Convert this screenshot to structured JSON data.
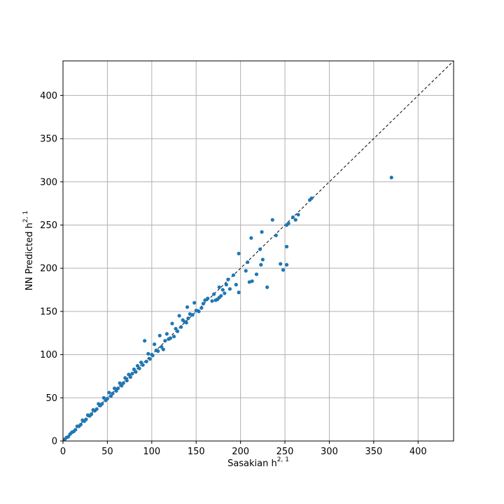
{
  "chart_data": {
    "type": "scatter",
    "title": "",
    "xlabel": "Sasakian h",
    "xlabel_sup": "2, 1",
    "ylabel": "NN Predicted h",
    "ylabel_sup": "2, 1",
    "xlim": [
      0,
      440
    ],
    "ylim": [
      0,
      440
    ],
    "xticks": [
      0,
      50,
      100,
      150,
      200,
      250,
      300,
      350,
      400
    ],
    "yticks": [
      0,
      50,
      100,
      150,
      200,
      250,
      300,
      350,
      400
    ],
    "grid": true,
    "legend": "none",
    "colors": {
      "points": "#1f77b4",
      "reference_line": "#000000",
      "grid": "#b0b0b0"
    },
    "reference_line": {
      "style": "dashed",
      "from": [
        0,
        0
      ],
      "to": [
        440,
        440
      ]
    },
    "series": [
      {
        "values": [
          [
            370,
            305
          ],
          [
            280,
            281
          ],
          [
            278,
            279
          ],
          [
            265,
            262
          ],
          [
            262,
            256
          ],
          [
            259,
            259
          ],
          [
            252,
            250
          ],
          [
            254,
            252
          ],
          [
            252,
            225
          ],
          [
            252,
            204
          ],
          [
            248,
            198
          ],
          [
            245,
            205
          ],
          [
            240,
            238
          ],
          [
            236,
            256
          ],
          [
            230,
            178
          ],
          [
            225,
            210
          ],
          [
            224,
            242
          ],
          [
            223,
            204
          ],
          [
            222,
            222
          ],
          [
            218,
            193
          ],
          [
            213,
            185
          ],
          [
            212,
            235
          ],
          [
            210,
            184
          ],
          [
            208,
            207
          ],
          [
            206,
            197
          ],
          [
            198,
            217
          ],
          [
            198,
            172
          ],
          [
            195,
            181
          ],
          [
            192,
            192
          ],
          [
            188,
            176
          ],
          [
            186,
            187
          ],
          [
            184,
            181
          ],
          [
            182,
            171
          ],
          [
            180,
            175
          ],
          [
            178,
            168
          ],
          [
            176,
            166
          ],
          [
            174,
            164
          ],
          [
            172,
            163
          ],
          [
            176,
            178
          ],
          [
            170,
            170
          ],
          [
            168,
            162
          ],
          [
            163,
            165
          ],
          [
            160,
            163
          ],
          [
            158,
            159
          ],
          [
            156,
            154
          ],
          [
            153,
            150
          ],
          [
            150,
            151
          ],
          [
            148,
            160
          ],
          [
            146,
            146
          ],
          [
            143,
            147
          ],
          [
            141,
            142
          ],
          [
            140,
            155
          ],
          [
            139,
            137
          ],
          [
            137,
            138
          ],
          [
            135,
            140
          ],
          [
            133,
            132
          ],
          [
            131,
            145
          ],
          [
            129,
            127
          ],
          [
            127,
            130
          ],
          [
            125,
            121
          ],
          [
            123,
            136
          ],
          [
            121,
            119
          ],
          [
            119,
            118
          ],
          [
            117,
            124
          ],
          [
            115,
            116
          ],
          [
            113,
            106
          ],
          [
            111,
            109
          ],
          [
            109,
            122
          ],
          [
            107,
            104
          ],
          [
            105,
            105
          ],
          [
            103,
            112
          ],
          [
            101,
            99
          ],
          [
            100,
            100
          ],
          [
            98,
            95
          ],
          [
            96,
            101
          ],
          [
            94,
            92
          ],
          [
            92,
            116
          ],
          [
            90,
            88
          ],
          [
            88,
            91
          ],
          [
            86,
            84
          ],
          [
            84,
            87
          ],
          [
            82,
            80
          ],
          [
            80,
            83
          ],
          [
            78,
            78
          ],
          [
            76,
            74
          ],
          [
            74,
            77
          ],
          [
            72,
            70
          ],
          [
            70,
            73
          ],
          [
            68,
            67
          ],
          [
            66,
            64
          ],
          [
            64,
            67
          ],
          [
            62,
            61
          ],
          [
            60,
            58
          ],
          [
            58,
            61
          ],
          [
            56,
            55
          ],
          [
            54,
            52
          ],
          [
            52,
            56
          ],
          [
            50,
            49
          ],
          [
            48,
            47
          ],
          [
            46,
            50
          ],
          [
            44,
            43
          ],
          [
            42,
            41
          ],
          [
            40,
            43
          ],
          [
            38,
            37
          ],
          [
            36,
            35
          ],
          [
            34,
            36
          ],
          [
            32,
            31
          ],
          [
            30,
            29
          ],
          [
            28,
            30
          ],
          [
            26,
            25
          ],
          [
            24,
            23
          ],
          [
            22,
            24
          ],
          [
            20,
            19
          ],
          [
            18,
            17
          ],
          [
            16,
            17
          ],
          [
            14,
            13
          ],
          [
            12,
            11
          ],
          [
            10,
            10
          ],
          [
            8,
            8
          ],
          [
            6,
            5
          ],
          [
            4,
            4
          ],
          [
            2,
            2
          ]
        ]
      }
    ]
  }
}
